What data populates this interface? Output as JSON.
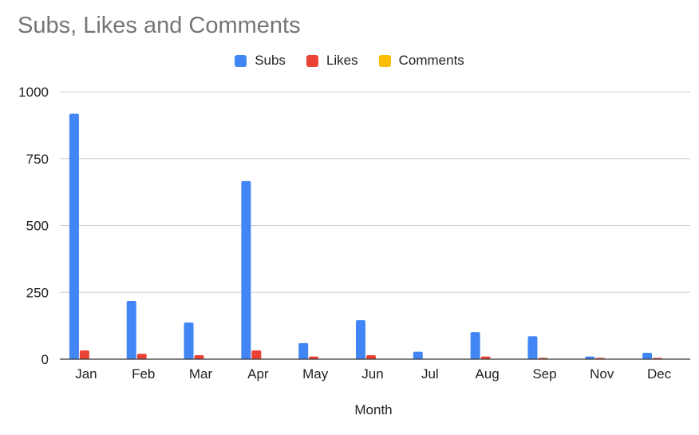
{
  "chart_data": {
    "type": "bar",
    "title": "Subs, Likes and Comments",
    "xlabel": "Month",
    "ylabel": "",
    "ylim": [
      0,
      1000
    ],
    "yticks": [
      "0",
      "250",
      "500",
      "750",
      "1000"
    ],
    "grid": true,
    "legend_position": "top",
    "categories": [
      "Jan",
      "Feb",
      "Mar",
      "Apr",
      "May",
      "Jun",
      "Jul",
      "Aug",
      "Sep",
      "Nov",
      "Dec"
    ],
    "series": [
      {
        "name": "Subs",
        "color": "#4285F4",
        "values": [
          918,
          218,
          137,
          666,
          60,
          146,
          28,
          101,
          86,
          10,
          24
        ]
      },
      {
        "name": "Likes",
        "color": "#EA4335",
        "values": [
          33,
          20,
          15,
          33,
          10,
          15,
          0,
          10,
          5,
          5,
          5
        ]
      },
      {
        "name": "Comments",
        "color": "#FBBC04",
        "values": [
          0,
          0,
          0,
          0,
          0,
          0,
          0,
          0,
          0,
          0,
          0
        ]
      }
    ]
  }
}
